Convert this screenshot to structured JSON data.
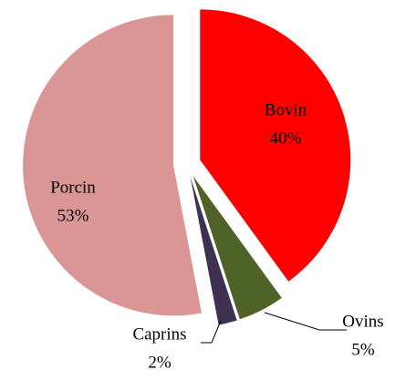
{
  "chart_data": {
    "type": "pie",
    "categories": [
      "Bovin",
      "Ovins",
      "Caprins",
      "Porcin"
    ],
    "values": [
      40,
      5,
      2,
      53
    ],
    "value_labels": [
      "40%",
      "5%",
      "2%",
      "53%"
    ],
    "colors": [
      "#ff0000",
      "#4f6228",
      "#3f3151",
      "#d99694"
    ]
  }
}
